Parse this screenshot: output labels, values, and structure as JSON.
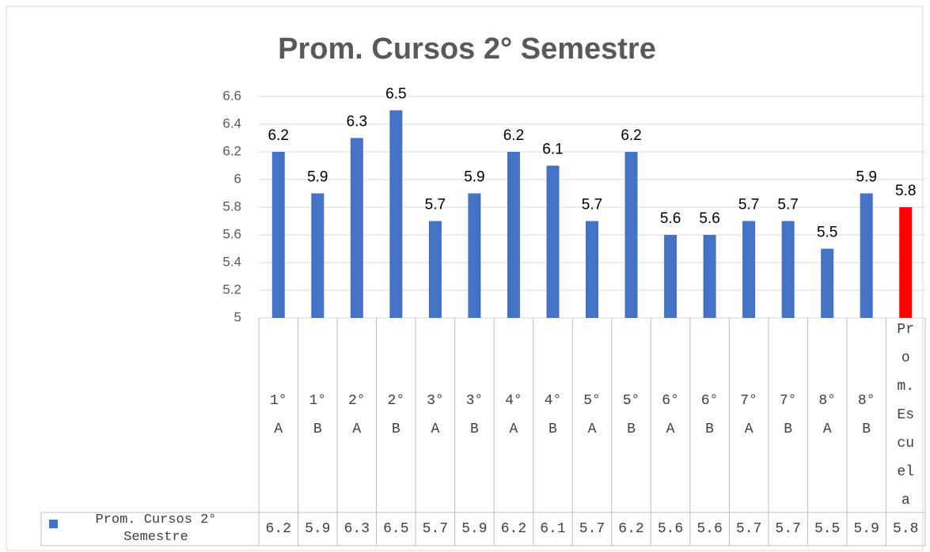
{
  "chart_data": {
    "type": "bar",
    "title": "Prom. Cursos 2° Semestre",
    "categories": [
      "1° A",
      "1° B",
      "2° A",
      "2° B",
      "3° A",
      "3° B",
      "4° A",
      "4° B",
      "5° A",
      "5° B",
      "6° A",
      "6° B",
      "7° A",
      "7° B",
      "8° A",
      "8° B",
      "Prom. Escuela"
    ],
    "series": [
      {
        "name": "Prom. Cursos 2° Semestre",
        "color": "#4472c4",
        "colors": [
          "#4472c4",
          "#4472c4",
          "#4472c4",
          "#4472c4",
          "#4472c4",
          "#4472c4",
          "#4472c4",
          "#4472c4",
          "#4472c4",
          "#4472c4",
          "#4472c4",
          "#4472c4",
          "#4472c4",
          "#4472c4",
          "#4472c4",
          "#4472c4",
          "#ff0000"
        ],
        "values": [
          6.2,
          5.9,
          6.3,
          6.5,
          5.7,
          5.9,
          6.2,
          6.1,
          5.7,
          6.2,
          5.6,
          5.6,
          5.7,
          5.7,
          5.5,
          5.9,
          5.8
        ]
      }
    ],
    "ylim": [
      5,
      6.6
    ],
    "yticks": [
      5,
      5.2,
      5.4,
      5.6,
      5.8,
      6,
      6.2,
      6.4,
      6.6
    ],
    "grid": true,
    "data_table": true
  }
}
